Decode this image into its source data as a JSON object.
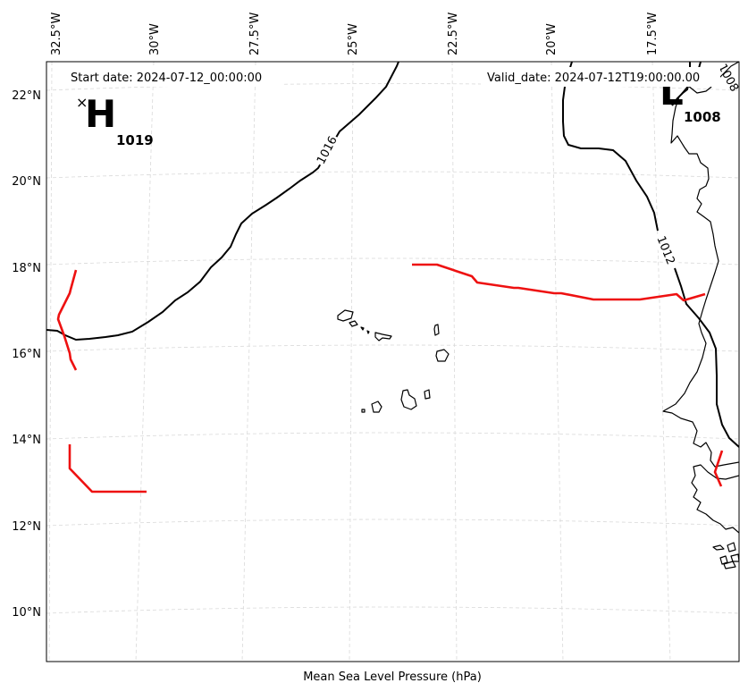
{
  "header": {
    "start_date": "Start date: 2024-07-12_00:00:00",
    "valid_date": "Valid_date: 2024-07-12T19:00:00.00"
  },
  "caption": "Mean Sea Level Pressure (hPa)",
  "axes": {
    "lon_ticks": [
      "32.5°W",
      "30°W",
      "27.5°W",
      "25°W",
      "22.5°W",
      "20°W",
      "17.5°W"
    ],
    "lat_ticks": [
      "22°N",
      "20°N",
      "18°N",
      "16°N",
      "14°N",
      "12°N",
      "10°N"
    ]
  },
  "pressure_centers": {
    "high": {
      "letter": "H",
      "value": "1019",
      "marker": "×"
    },
    "low": {
      "letter": "L",
      "value": "1008"
    }
  },
  "isobar_labels": [
    "1016",
    "1012",
    "1008"
  ],
  "colors": {
    "front": "#ee1111",
    "isobar": "#000000",
    "grid": "#d9d9d9",
    "frame": "#000000"
  }
}
